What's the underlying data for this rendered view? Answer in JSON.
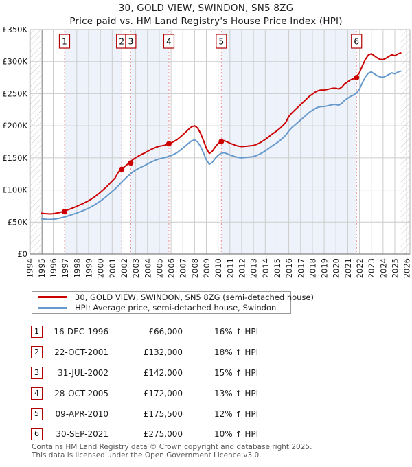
{
  "chart_data": {
    "type": "line",
    "title": "30, GOLD VIEW, SWINDON, SN5 8ZG",
    "subtitle": "Price paid vs. HM Land Registry's House Price Index (HPI)",
    "ylabel": "",
    "xlabel": "",
    "unit": "£K",
    "ylim": [
      0,
      350
    ],
    "ytick_values": [
      0,
      50,
      100,
      150,
      200,
      250,
      300,
      350
    ],
    "ytick_labels": [
      "£0",
      "£50K",
      "£100K",
      "£150K",
      "£200K",
      "£250K",
      "£300K",
      "£350K"
    ],
    "x_years": [
      "1994",
      "1995",
      "1996",
      "1997",
      "1998",
      "1999",
      "2000",
      "2001",
      "2002",
      "2003",
      "2004",
      "2005",
      "2006",
      "2007",
      "2008",
      "2009",
      "2010",
      "2011",
      "2012",
      "2013",
      "2014",
      "2015",
      "2016",
      "2017",
      "2018",
      "2019",
      "2020",
      "2021",
      "2022",
      "2023",
      "2024",
      "2025",
      "2026"
    ],
    "grid": true,
    "legend_position": "bottom",
    "series_start": 1995.0,
    "series_step": 0.25,
    "series": [
      {
        "name": "30, GOLD VIEW, SWINDON, SN5 8ZG (semi-detached house)",
        "color": "#cc0000",
        "values": [
          63.8,
          63.2,
          62.9,
          62.6,
          63.0,
          63.8,
          64.7,
          65.9,
          67.3,
          69.1,
          70.8,
          72.6,
          74.4,
          76.5,
          78.5,
          80.8,
          83.2,
          86.1,
          89.1,
          92.6,
          96.2,
          100.3,
          104.4,
          109.1,
          113.8,
          118.6,
          127.0,
          132.5,
          135.5,
          139.1,
          142.9,
          147.2,
          150.3,
          152.9,
          155.5,
          157.6,
          160.1,
          162.6,
          164.6,
          166.6,
          168.0,
          168.9,
          169.9,
          171.5,
          173.3,
          175.5,
          178.2,
          182.0,
          185.8,
          190.2,
          194.6,
          198.4,
          200.0,
          196.6,
          188.6,
          177.3,
          164.9,
          156.9,
          160.2,
          166.8,
          172.4,
          175.7,
          176.8,
          175.1,
          172.8,
          171.1,
          169.3,
          168.1,
          167.5,
          167.9,
          168.4,
          168.9,
          169.3,
          170.9,
          173.0,
          175.7,
          178.9,
          182.1,
          185.9,
          189.1,
          192.3,
          196.1,
          200.4,
          205.3,
          214.5,
          219.9,
          224.3,
          228.7,
          233.0,
          237.4,
          241.7,
          246.1,
          249.3,
          252.5,
          254.7,
          255.7,
          255.6,
          256.6,
          257.6,
          258.5,
          258.5,
          257.2,
          260.2,
          265.6,
          268.6,
          271.6,
          273.4,
          276.7,
          282.7,
          293.7,
          303.6,
          310.2,
          312.4,
          309.1,
          305.8,
          303.6,
          303.1,
          305.3,
          308.0,
          310.8,
          309.1,
          311.9,
          313.5
        ]
      },
      {
        "name": "HPI: Average price, semi-detached house, Swindon",
        "color": "#6699cc",
        "values": [
          55.0,
          54.5,
          54.2,
          54.0,
          54.3,
          55.0,
          55.8,
          56.8,
          58.0,
          59.5,
          61.0,
          62.5,
          64.0,
          65.8,
          67.5,
          69.5,
          71.5,
          74.0,
          76.5,
          79.5,
          82.5,
          86.0,
          89.5,
          93.5,
          97.5,
          101.5,
          106.0,
          111.0,
          115.5,
          120.0,
          124.0,
          128.0,
          131.0,
          133.5,
          136.0,
          138.0,
          140.5,
          143.0,
          145.0,
          147.0,
          148.5,
          149.5,
          150.5,
          152.0,
          153.5,
          155.5,
          158.0,
          161.5,
          165.0,
          169.0,
          173.0,
          176.5,
          178.0,
          175.0,
          168.0,
          158.0,
          147.0,
          140.0,
          143.0,
          149.0,
          154.0,
          157.0,
          158.0,
          156.5,
          154.5,
          153.0,
          151.5,
          150.5,
          150.0,
          150.5,
          151.0,
          151.5,
          152.0,
          153.5,
          155.5,
          158.0,
          161.0,
          164.0,
          167.5,
          170.5,
          173.5,
          177.0,
          181.0,
          185.5,
          192.0,
          197.0,
          201.0,
          205.0,
          209.0,
          213.0,
          217.0,
          221.0,
          224.0,
          227.0,
          229.0,
          230.0,
          230.0,
          231.0,
          232.0,
          233.0,
          233.0,
          232.0,
          235.0,
          240.0,
          243.0,
          246.0,
          248.0,
          251.0,
          257.0,
          267.0,
          276.0,
          282.0,
          284.0,
          281.0,
          278.0,
          276.0,
          275.5,
          277.5,
          280.0,
          282.5,
          281.0,
          283.5,
          285.0
        ]
      }
    ],
    "sales": [
      {
        "n": "1",
        "t": 1996.96,
        "price_k": 66.0,
        "date": "16-DEC-1996",
        "price": "£66,000",
        "vs_hpi": "16% ↑ HPI"
      },
      {
        "n": "2",
        "t": 2001.81,
        "price_k": 132.0,
        "date": "22-OCT-2001",
        "price": "£132,000",
        "vs_hpi": "18% ↑ HPI"
      },
      {
        "n": "3",
        "t": 2002.58,
        "price_k": 142.0,
        "date": "31-JUL-2002",
        "price": "£142,000",
        "vs_hpi": "15% ↑ HPI"
      },
      {
        "n": "4",
        "t": 2005.82,
        "price_k": 172.0,
        "date": "28-OCT-2005",
        "price": "£172,000",
        "vs_hpi": "13% ↑ HPI"
      },
      {
        "n": "5",
        "t": 2010.27,
        "price_k": 175.5,
        "date": "09-APR-2010",
        "price": "£175,500",
        "vs_hpi": "12% ↑ HPI"
      },
      {
        "n": "6",
        "t": 2021.75,
        "price_k": 275.0,
        "date": "30-SEP-2021",
        "price": "£275,000",
        "vs_hpi": "10% ↑ HPI"
      }
    ],
    "tint_pairs": [
      [
        0,
        1
      ],
      [
        2,
        3
      ],
      [
        4,
        5
      ]
    ],
    "hatch_left_until": 1995.08,
    "hatch_right_from": 2025.5,
    "colors": {
      "tint_band": "#eef2fb",
      "grid": "#cccccc",
      "plot_border": "#b0b0b0",
      "hatch_line": "#c8c8c8",
      "hatch_edge": "#8f8f8f",
      "axis_bottom": "#666666",
      "sale_dotted": "#ec8b8b",
      "sale_box_border": "#b00000",
      "marker": "#cc0000"
    }
  },
  "footer": {
    "line1": "Contains HM Land Registry data © Crown copyright and database right 2025.",
    "line2": "This data is licensed under the Open Government Licence v3.0."
  }
}
